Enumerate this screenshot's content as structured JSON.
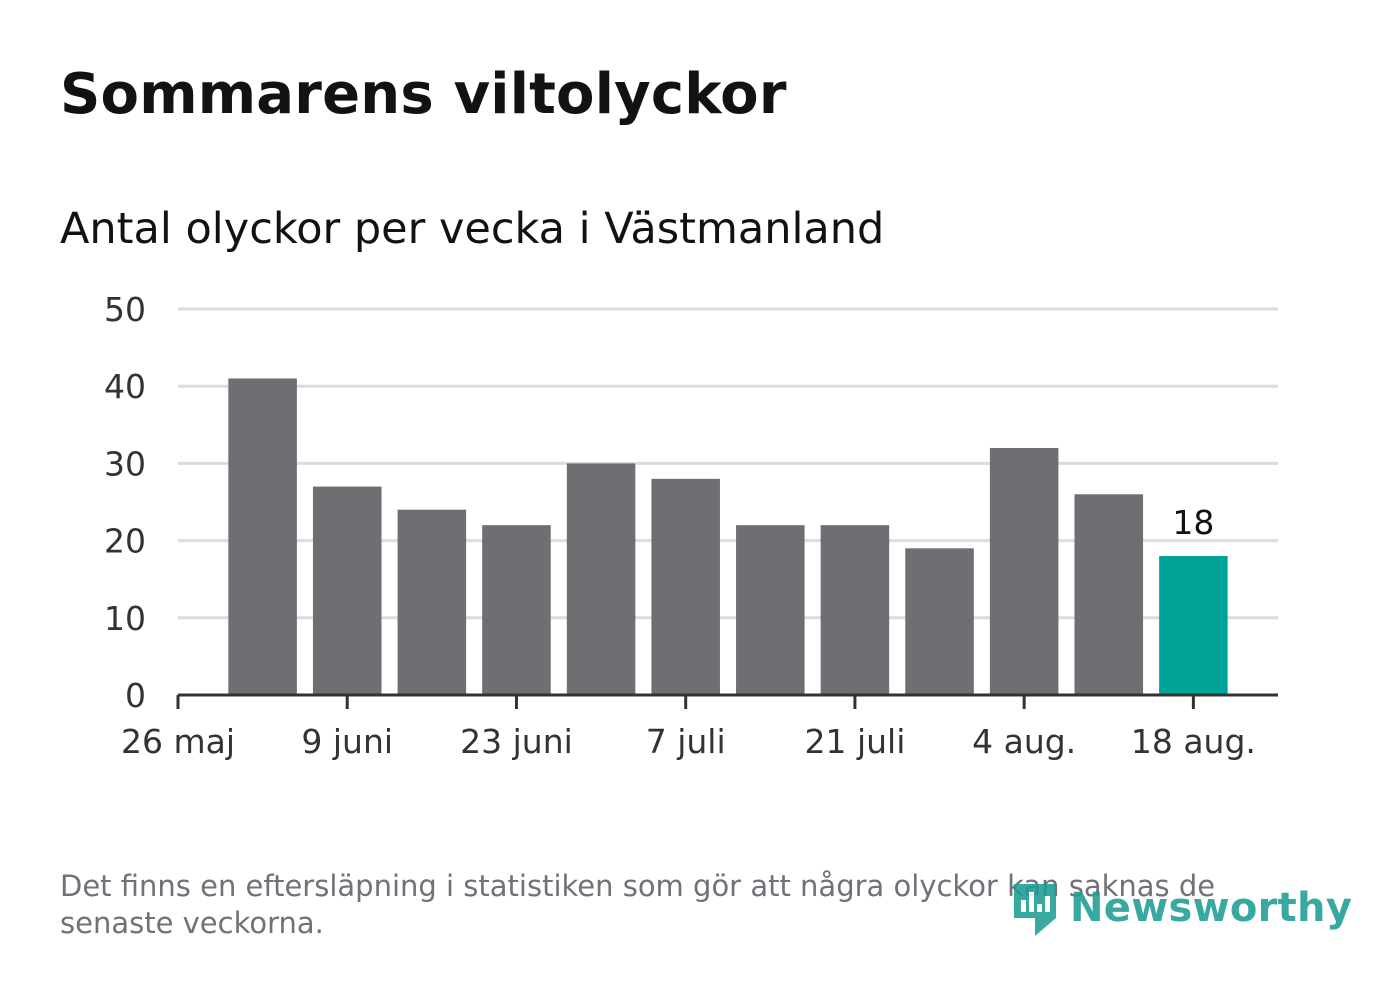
{
  "title": "Sommarens viltolyckor",
  "subtitle": "Antal olyckor per vecka i Västmanland",
  "footnote": "Det finns en eftersläpning i statistiken som gör att några olyckor kan saknas de senaste veckorna.",
  "logo": {
    "text": "Newsworthy",
    "icon": "newsworthy-logo-icon"
  },
  "colors": {
    "bar": "#6f6e73",
    "highlight": "#00a398",
    "grid": "#dcdcdc",
    "axis": "#333333",
    "text": "#333333"
  },
  "chart_data": {
    "type": "bar",
    "title": "Sommarens viltolyckor",
    "subtitle": "Antal olyckor per vecka i Västmanland",
    "xlabel": "",
    "ylabel": "",
    "ylim": [
      0,
      50
    ],
    "yticks": [
      0,
      10,
      20,
      30,
      40,
      50
    ],
    "grid": true,
    "values": [
      41,
      27,
      24,
      22,
      30,
      28,
      22,
      22,
      19,
      32,
      26,
      18
    ],
    "xtick_labels": [
      "26 maj",
      "9 juni",
      "23 juni",
      "7 juli",
      "21 juli",
      "4 aug.",
      "18 aug."
    ],
    "highlight_index": 11,
    "data_label": "18"
  }
}
